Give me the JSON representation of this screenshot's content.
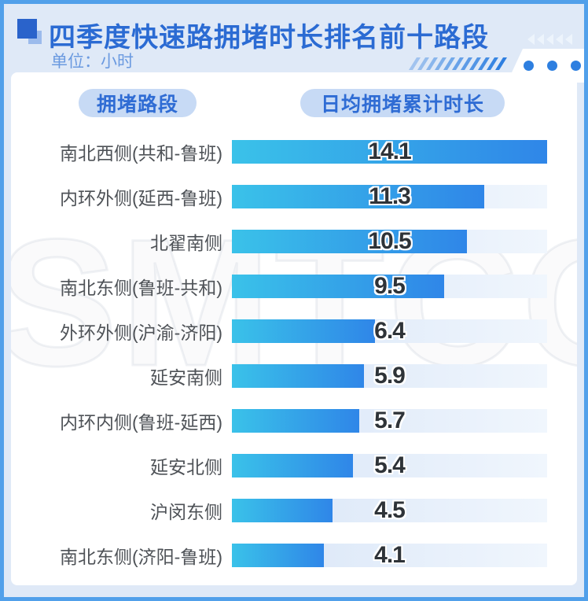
{
  "header": {
    "title": "四季度快速路拥堵时长排名前十路段",
    "unit_label": "单位：小时"
  },
  "column_headers": {
    "road": "拥堵路段",
    "duration": "日均拥堵累计时长"
  },
  "watermark": "SMTCC",
  "chart_data": {
    "type": "bar",
    "orientation": "horizontal",
    "title": "四季度快速路拥堵时长排名前十路段",
    "unit": "小时",
    "categories": [
      "南北西侧(共和-鲁班)",
      "内环外侧(延西-鲁班)",
      "北翟南侧",
      "南北东侧(鲁班-共和)",
      "外环外侧(沪渝-济阳)",
      "延安南侧",
      "内环内侧(鲁班-延西)",
      "延安北侧",
      "沪闵东侧",
      "南北东侧(济阳-鲁班)"
    ],
    "values": [
      14.1,
      11.3,
      10.5,
      9.5,
      6.4,
      5.9,
      5.7,
      5.4,
      4.5,
      4.1
    ],
    "value_axis_max": 14.1,
    "value_labels": "centered-on-track",
    "grid": false,
    "legend": false
  },
  "colors": {
    "frame_border": "#51a0ea",
    "page_bg": "#dfe9f7",
    "card_bg": "#ffffff",
    "title_text": "#2b6bd3",
    "unit_text": "#6b9ae0",
    "icon_dark_square": "#2a63cb",
    "icon_light_square": "#9cbbec",
    "chevron_color": "#edf4fc",
    "stripe_color": "#2e7fe0",
    "dot_color": "#2e7fe0",
    "pill_bg": "#c7daf5",
    "pill_text": "#2f6cd4",
    "bar_gradient_start": "#3ac2e9",
    "bar_gradient_end": "#2f86e8",
    "track_gradient_start": "#d8e5f7",
    "track_gradient_end": "#f0f6fd",
    "label_text": "#4e5257",
    "value_text": "#2e3338"
  }
}
